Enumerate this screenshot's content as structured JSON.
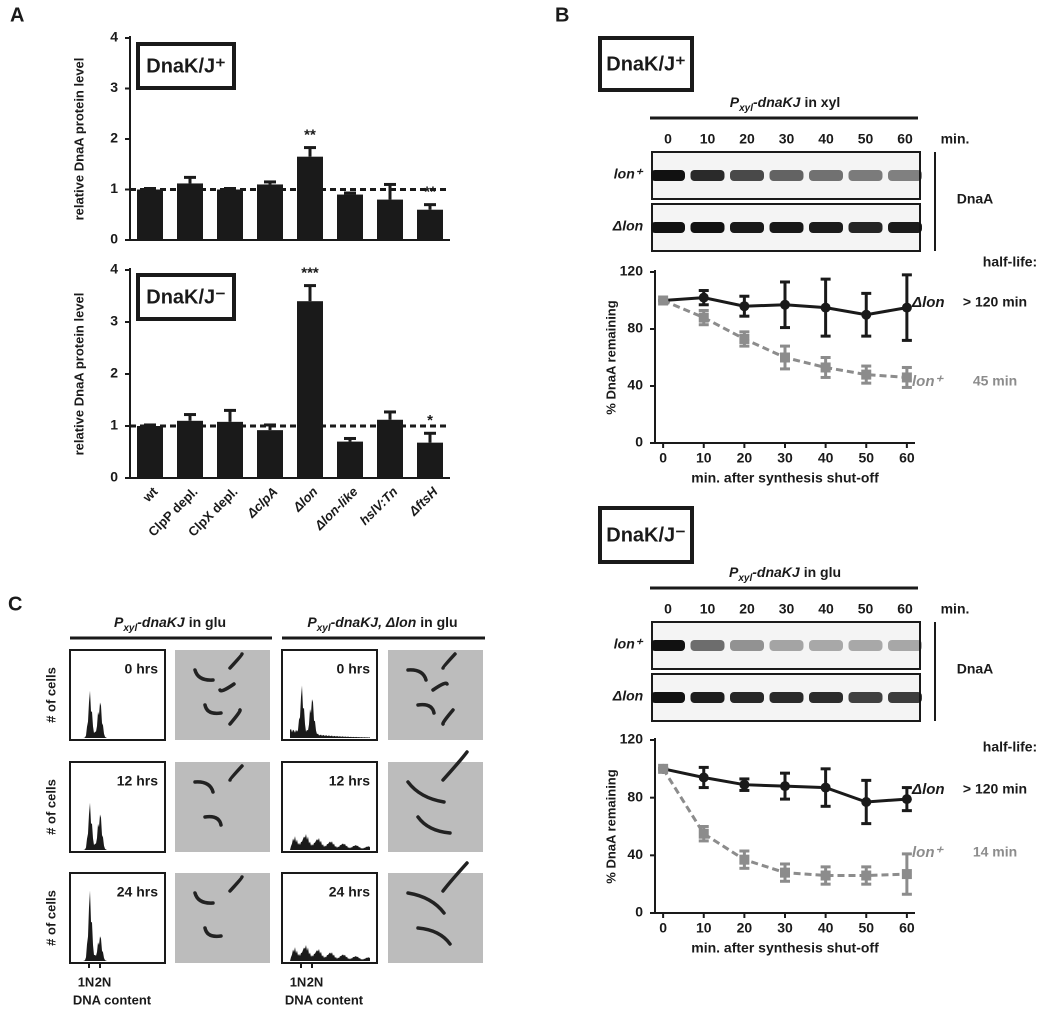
{
  "figure": {
    "panel_labels": [
      "A",
      "B",
      "C"
    ],
    "blots": [
      {
        "promoter": "P",
        "promoter_sub": "xyl",
        "gene": "-dnaKJ",
        "condition": "in xyl",
        "times": [
          "0",
          "10",
          "20",
          "30",
          "40",
          "50",
          "60"
        ],
        "unit": "min.",
        "rows": [
          "lon⁺",
          "Δlon"
        ],
        "protein": "DnaA"
      },
      {
        "promoter": "P",
        "promoter_sub": "xyl",
        "gene": "-dnaKJ",
        "condition": "in glu",
        "times": [
          "0",
          "10",
          "20",
          "30",
          "40",
          "50",
          "60"
        ],
        "unit": "min.",
        "rows": [
          "lon⁺",
          "Δlon"
        ],
        "protein": "DnaA"
      }
    ],
    "flow": {
      "columns": [
        {
          "promoter": "P",
          "promoter_sub": "xyl",
          "gene": "-dnaKJ",
          "condition": "in glu"
        },
        {
          "promoter": "P",
          "promoter_sub": "xyl",
          "gene": "-dnaKJ, Δlon",
          "condition": "in glu"
        }
      ],
      "timepoints": [
        "0 hrs",
        "12 hrs",
        "24 hrs"
      ],
      "ylabel": "# of cells",
      "xticks": [
        "1N",
        "2N"
      ],
      "xlabel": "DNA content"
    }
  },
  "chart_data": [
    {
      "type": "bar",
      "title": "DnaK/J⁺",
      "ylabel": "relative DnaA protein level",
      "values": [
        1.0,
        1.12,
        1.0,
        1.1,
        1.65,
        0.9,
        0.8,
        0.6
      ],
      "errors": [
        0.02,
        0.12,
        0.02,
        0.05,
        0.18,
        0.03,
        0.3,
        0.1
      ],
      "annotations": [
        null,
        null,
        null,
        null,
        "**",
        null,
        null,
        "**"
      ],
      "color": "#1a1a1a",
      "hline": 1,
      "ylim": [
        0,
        4
      ],
      "yticks": [
        0,
        1,
        2,
        3,
        4
      ]
    },
    {
      "type": "bar",
      "title": "DnaK/J⁻",
      "ylabel": "relative DnaA protein level",
      "categories": [
        "wt",
        "ClpP depl.",
        "ClpX depl.",
        "ΔclpA",
        "Δlon",
        "Δlon-like",
        "hslV:Tn",
        "ΔftsH"
      ],
      "values": [
        1.0,
        1.1,
        1.08,
        0.92,
        3.4,
        0.7,
        1.12,
        0.68
      ],
      "errors": [
        0.02,
        0.12,
        0.22,
        0.1,
        0.3,
        0.06,
        0.15,
        0.18
      ],
      "annotations": [
        null,
        null,
        null,
        null,
        "***",
        null,
        null,
        "*"
      ],
      "color": "#1a1a1a",
      "hline": 1,
      "ylim": [
        0,
        4
      ],
      "yticks": [
        0,
        1,
        2,
        3,
        4
      ]
    },
    {
      "type": "line",
      "xlabel": "min. after synthesis shut-off",
      "ylabel": "% DnaA remaining",
      "legend_title": "half-life:",
      "x": [
        0,
        10,
        20,
        30,
        40,
        50,
        60
      ],
      "xlim": [
        -2,
        62
      ],
      "xticks": [
        0,
        10,
        20,
        30,
        40,
        50,
        60
      ],
      "ylim": [
        0,
        120
      ],
      "yticks": [
        0,
        40,
        80,
        120
      ],
      "series": [
        {
          "name": "Δlon",
          "half_life": "> 120 min",
          "color": "#1a1a1a",
          "dashed": false,
          "marker": "circle",
          "values": [
            100,
            102,
            96,
            97,
            95,
            90,
            95
          ],
          "errors": [
            0,
            5,
            7,
            16,
            20,
            15,
            23
          ]
        },
        {
          "name": "lon⁺",
          "half_life": "45 min",
          "color": "#8c8c8c",
          "dashed": true,
          "marker": "square",
          "values": [
            100,
            88,
            73,
            60,
            53,
            48,
            46
          ],
          "errors": [
            0,
            5,
            5,
            8,
            7,
            6,
            7
          ]
        }
      ]
    },
    {
      "type": "line",
      "xlabel": "min. after synthesis shut-off",
      "ylabel": "% DnaA remaining",
      "legend_title": "half-life:",
      "x": [
        0,
        10,
        20,
        30,
        40,
        50,
        60
      ],
      "xlim": [
        -2,
        62
      ],
      "xticks": [
        0,
        10,
        20,
        30,
        40,
        50,
        60
      ],
      "ylim": [
        0,
        120
      ],
      "yticks": [
        0,
        40,
        80,
        120
      ],
      "series": [
        {
          "name": "Δlon",
          "half_life": "> 120 min",
          "color": "#1a1a1a",
          "dashed": false,
          "marker": "circle",
          "values": [
            100,
            94,
            89,
            88,
            87,
            77,
            79
          ],
          "errors": [
            0,
            7,
            4,
            9,
            13,
            15,
            8
          ]
        },
        {
          "name": "lon⁺",
          "half_life": "14 min",
          "color": "#8c8c8c",
          "dashed": true,
          "marker": "square",
          "values": [
            100,
            55,
            37,
            28,
            26,
            26,
            27
          ],
          "errors": [
            0,
            5,
            6,
            6,
            6,
            6,
            14
          ]
        }
      ]
    }
  ]
}
